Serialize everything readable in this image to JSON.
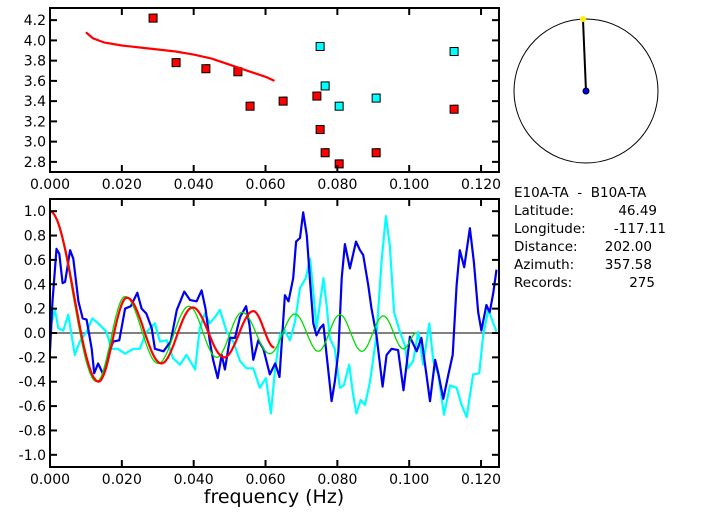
{
  "colors": {
    "red": "#ff0000",
    "cyan": "#00ffff",
    "blue": "#0000ee",
    "green": "#00dd00",
    "yellow": "#ffee00",
    "axis": "#000000"
  },
  "chart_data": [
    {
      "type": "scatter",
      "title": "",
      "xlabel": "",
      "ylabel": "",
      "xlim": [
        0,
        0.125
      ],
      "ylim": [
        2.7,
        4.32
      ],
      "xticks": [
        "0.000",
        "0.020",
        "0.040",
        "0.060",
        "0.080",
        "0.100",
        "0.120"
      ],
      "yticks": [
        "2.8",
        "3.0",
        "3.2",
        "3.4",
        "3.6",
        "3.8",
        "4.0",
        "4.2"
      ],
      "series": [
        {
          "name": "red-points",
          "color": "red",
          "kind": "points",
          "x": [
            0.0287,
            0.0351,
            0.0434,
            0.0523,
            0.0557,
            0.0649,
            0.0743,
            0.0752,
            0.0766,
            0.0805,
            0.0908,
            0.1125
          ],
          "y": [
            4.22,
            3.78,
            3.72,
            3.69,
            3.35,
            3.4,
            3.45,
            3.12,
            2.89,
            2.78,
            2.89,
            3.32
          ]
        },
        {
          "name": "cyan-points",
          "color": "cyan",
          "kind": "points",
          "x": [
            0.0752,
            0.0766,
            0.0805,
            0.0908,
            0.1125
          ],
          "y": [
            3.94,
            3.55,
            3.35,
            3.43,
            3.89
          ]
        },
        {
          "name": "red-curve",
          "color": "red",
          "kind": "line",
          "x": [
            0.01,
            0.012,
            0.015,
            0.02,
            0.025,
            0.03,
            0.035,
            0.04,
            0.045,
            0.05,
            0.055,
            0.06,
            0.0625
          ],
          "y": [
            4.08,
            4.02,
            3.98,
            3.95,
            3.93,
            3.91,
            3.89,
            3.86,
            3.82,
            3.76,
            3.7,
            3.64,
            3.6
          ]
        }
      ]
    },
    {
      "type": "line",
      "title": "",
      "xlabel": "frequency (Hz)",
      "ylabel": "",
      "xlim": [
        0,
        0.125
      ],
      "ylim": [
        -1.1,
        1.1
      ],
      "xticks": [
        "0.000",
        "0.020",
        "0.040",
        "0.060",
        "0.080",
        "0.100",
        "0.120"
      ],
      "yticks": [
        "-1.0",
        "-0.8",
        "-0.6",
        "-0.4",
        "-0.2",
        "0.0",
        "0.2",
        "0.4",
        "0.6",
        "0.8",
        "1.0"
      ],
      "series": [
        {
          "name": "cyan",
          "color": "cyan",
          "kind": "line",
          "x": [
            0,
            0.0014,
            0.0023,
            0.0037,
            0.0051,
            0.006,
            0.0069,
            0.0083,
            0.0102,
            0.0118,
            0.0134,
            0.0157,
            0.0171,
            0.0189,
            0.0209,
            0.0232,
            0.025,
            0.0269,
            0.0292,
            0.0306,
            0.0325,
            0.0343,
            0.0362,
            0.038,
            0.0404,
            0.0417,
            0.0431,
            0.0445,
            0.0459,
            0.0473,
            0.0492,
            0.051,
            0.0529,
            0.0547,
            0.0566,
            0.0584,
            0.0601,
            0.0615,
            0.0627,
            0.064,
            0.065,
            0.0668,
            0.0682,
            0.0696,
            0.0712,
            0.0724,
            0.0733,
            0.0742,
            0.0761,
            0.077,
            0.0779,
            0.0793,
            0.0807,
            0.0818,
            0.0833,
            0.0844,
            0.0853,
            0.0865,
            0.0877,
            0.0891,
            0.0909,
            0.0923,
            0.0935,
            0.0946,
            0.0958,
            0.0974,
            0.0988,
            0.0997,
            0.1011,
            0.1025,
            0.1039,
            0.1056,
            0.1067,
            0.1081,
            0.1097,
            0.1114,
            0.1132,
            0.1146,
            0.116,
            0.1178,
            0.1195,
            0.1206,
            0.122,
            0.1229,
            0.1243
          ],
          "y": [
            0.04,
            0.19,
            0.04,
            0.02,
            0.15,
            -0.02,
            -0.18,
            -0.07,
            0.01,
            0.12,
            0.08,
            0.01,
            -0.13,
            -0.13,
            -0.17,
            -0.13,
            -0.13,
            0.01,
            0.08,
            -0.07,
            -0.06,
            -0.21,
            -0.26,
            -0.18,
            -0.3,
            0.04,
            0.16,
            0.08,
            0.13,
            0.19,
            0.01,
            -0.07,
            -0.23,
            -0.29,
            -0.29,
            -0.45,
            -0.37,
            -0.66,
            -0.29,
            -0.02,
            0.04,
            -0.06,
            0.09,
            0.37,
            0.45,
            0.61,
            0.34,
            0.04,
            0.45,
            0.23,
            -0.04,
            -0.13,
            -0.45,
            -0.43,
            -0.26,
            -0.51,
            -0.66,
            -0.55,
            -0.59,
            -0.4,
            -0.02,
            0.58,
            0.96,
            0.72,
            0.17,
            0.01,
            -0.1,
            -0.29,
            -0.23,
            0.01,
            -0.26,
            0.08,
            -0.23,
            -0.34,
            -0.67,
            -0.43,
            -0.45,
            -0.59,
            -0.69,
            -0.34,
            -0.33,
            -0.02,
            0.19,
            0.12,
            0.01
          ]
        },
        {
          "name": "blue",
          "color": "blue",
          "kind": "line",
          "x": [
            0,
            0.0007,
            0.0018,
            0.0026,
            0.0035,
            0.0042,
            0.0056,
            0.0065,
            0.0079,
            0.0091,
            0.0102,
            0.0116,
            0.0123,
            0.0134,
            0.0148,
            0.0162,
            0.0176,
            0.0193,
            0.0209,
            0.0225,
            0.0243,
            0.0255,
            0.0268,
            0.0283,
            0.0292,
            0.0316,
            0.0336,
            0.0353,
            0.0374,
            0.039,
            0.0408,
            0.0422,
            0.0433,
            0.0445,
            0.0454,
            0.0467,
            0.0478,
            0.0487,
            0.0501,
            0.0515,
            0.0529,
            0.0546,
            0.0555,
            0.0566,
            0.058,
            0.0594,
            0.0612,
            0.0627,
            0.0639,
            0.0654,
            0.0664,
            0.0677,
            0.0685,
            0.0696,
            0.0705,
            0.0715,
            0.0724,
            0.0733,
            0.0742,
            0.0752,
            0.0761,
            0.077,
            0.0784,
            0.0793,
            0.0803,
            0.0812,
            0.0821,
            0.0835,
            0.0852,
            0.0863,
            0.0872,
            0.0886,
            0.0895,
            0.0909,
            0.0926,
            0.0937,
            0.0951,
            0.0969,
            0.0984,
            0.1002,
            0.1021,
            0.1034,
            0.1048,
            0.1058,
            0.1072,
            0.1081,
            0.1095,
            0.1109,
            0.1121,
            0.1132,
            0.1141,
            0.1153,
            0.1169,
            0.118,
            0.1192,
            0.1201,
            0.1215,
            0.1224,
            0.1234,
            0.1243
          ],
          "y": [
            -0.15,
            0.26,
            0.69,
            0.65,
            0.41,
            0.42,
            0.68,
            0.61,
            0.26,
            0.12,
            0.11,
            -0.13,
            -0.33,
            -0.25,
            -0.34,
            -0.18,
            -0.07,
            -0.06,
            0.2,
            0.22,
            0.33,
            0.2,
            0.16,
            0.04,
            -0.13,
            -0.15,
            -0.07,
            0.19,
            0.34,
            0.27,
            0.26,
            0.35,
            0.2,
            -0.07,
            -0.22,
            -0.37,
            -0.18,
            -0.3,
            -0.04,
            -0.04,
            0.13,
            0.22,
            0.07,
            -0.22,
            -0.06,
            -0.13,
            -0.34,
            -0.25,
            -0.36,
            0.31,
            0.26,
            0.45,
            0.75,
            0.78,
            0.99,
            0.8,
            0.42,
            0.08,
            -0.02,
            0.04,
            0.07,
            -0.18,
            -0.56,
            -0.4,
            -0.15,
            0.45,
            0.73,
            0.53,
            0.75,
            0.68,
            0.64,
            0.39,
            0.2,
            -0.02,
            -0.44,
            -0.18,
            -0.13,
            -0.14,
            -0.47,
            -0.03,
            -0.15,
            -0.04,
            -0.34,
            -0.56,
            -0.22,
            -0.33,
            -0.54,
            -0.34,
            -0.18,
            0.39,
            0.68,
            0.54,
            0.86,
            0.58,
            0.17,
            0.02,
            0.23,
            0.17,
            0.33,
            0.52
          ]
        },
        {
          "name": "green",
          "color": "green",
          "kind": "smooth",
          "x": [
            0,
            0.013,
            0.0209,
            0.0301,
            0.0387,
            0.0464,
            0.0535,
            0.0612,
            0.0682,
            0.0747,
            0.0807,
            0.0868,
            0.0928,
            0.0984,
            0.102
          ],
          "y": [
            1.0,
            -0.4,
            0.3,
            -0.25,
            0.22,
            -0.2,
            0.17,
            -0.17,
            0.156,
            -0.15,
            0.15,
            -0.15,
            0.14,
            -0.13,
            0.0
          ]
        },
        {
          "name": "red",
          "color": "red",
          "kind": "smooth",
          "x": [
            0,
            0.0135,
            0.0214,
            0.031,
            0.0397,
            0.0485,
            0.0566,
            0.0625
          ],
          "y": [
            1.0,
            -0.4,
            0.29,
            -0.25,
            0.21,
            -0.2,
            0.18,
            -0.12
          ]
        }
      ]
    }
  ],
  "azimuth_dial": {
    "azimuth_deg": 357.58
  },
  "info": {
    "title": "E10A-TA  -  B10A-TA",
    "rows": [
      {
        "label": "Latitude:",
        "value": "46.49"
      },
      {
        "label": "Longitude:",
        "value": "-117.11"
      },
      {
        "label": "Distance:",
        "value": "202.00"
      },
      {
        "label": "Azimuth:",
        "value": "357.58"
      },
      {
        "label": "Records:",
        "value": "275"
      }
    ]
  }
}
